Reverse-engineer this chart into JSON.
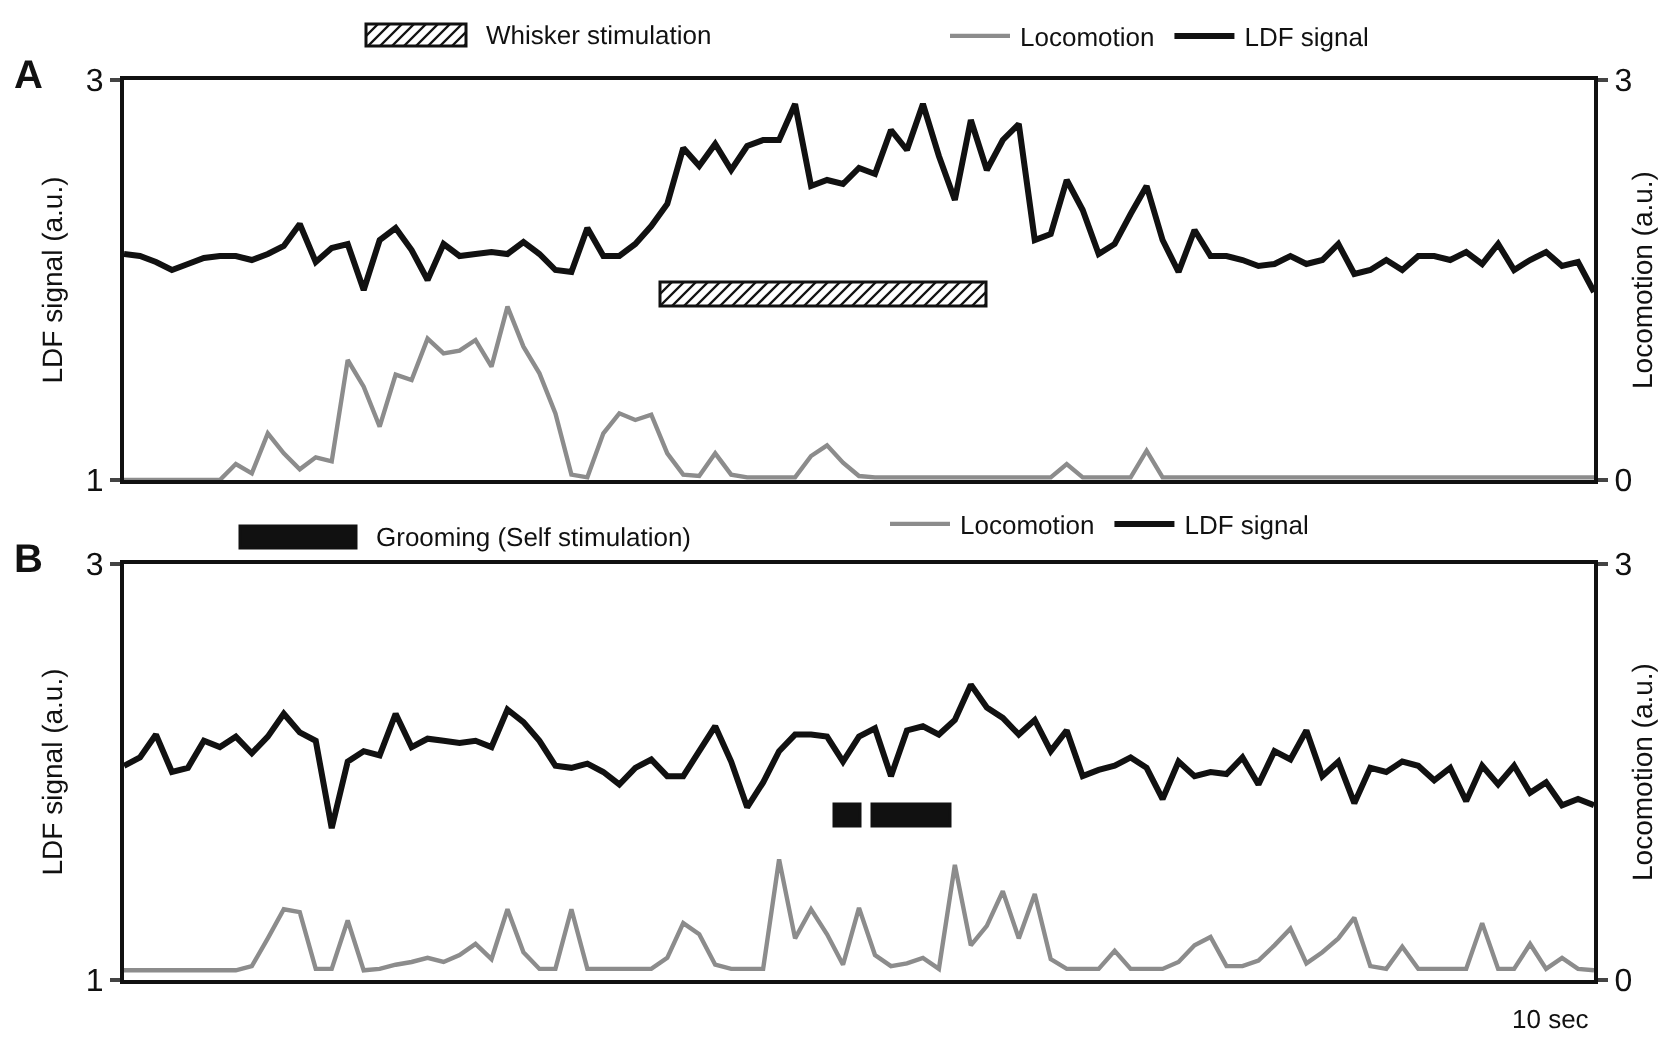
{
  "chart_data": [
    {
      "type": "line",
      "title": "A",
      "ylabel": "LDF signal (a.u.)",
      "y2label": "Locomotion (a.u.)",
      "ylim": [
        1,
        3
      ],
      "yticks": [
        1,
        3
      ],
      "y2lim": [
        0,
        3
      ],
      "y2ticks": [
        0,
        3
      ],
      "tick_labels": "y",
      "legend": "top",
      "line_style": "solid",
      "categories": [
        null,
        null,
        null,
        null,
        null,
        null,
        null,
        null,
        null,
        null,
        null,
        null,
        null,
        null,
        null,
        null,
        null,
        null,
        null,
        null,
        null,
        null,
        null,
        null,
        null,
        null,
        null,
        null,
        null,
        null,
        null,
        null,
        null,
        null,
        null,
        null,
        null,
        null,
        null,
        null,
        null,
        null,
        null,
        null,
        null,
        null,
        null,
        null,
        null,
        null,
        null,
        null,
        null,
        null,
        null,
        null,
        null,
        null,
        null,
        null,
        null,
        null,
        null,
        null,
        null,
        null,
        null,
        null,
        null,
        null,
        null,
        null,
        null,
        null,
        null,
        null,
        null,
        null,
        null,
        null,
        null,
        null,
        null,
        null,
        null,
        null,
        null,
        null,
        null,
        null,
        null,
        null,
        null
      ],
      "annotations": [
        "Whisker stimulation"
      ],
      "series": [
        {
          "name": "Locomotion",
          "color": "#8c8c8c",
          "axis": "y2",
          "values": [
            0,
            0,
            0,
            0,
            0,
            0,
            0,
            0.12,
            0.05,
            0.35,
            0.2,
            0.08,
            0.17,
            0.14,
            0.9,
            0.7,
            0.4,
            0.79,
            0.75,
            1.06,
            0.95,
            0.97,
            1.05,
            0.85,
            1.3,
            1.0,
            0.8,
            0.5,
            0.04,
            0.02,
            0.35,
            0.5,
            0.45,
            0.49,
            0.2,
            0.04,
            0.03,
            0.2,
            0.04,
            0.02,
            0.02,
            0.02,
            0.02,
            0.18,
            0.26,
            0.13,
            0.03,
            0.02,
            0.02,
            0.02,
            0.02,
            0.02,
            0.02,
            0.02,
            0.02,
            0.02,
            0.02,
            0.02,
            0.02,
            0.12,
            0.02,
            0.02,
            0.02,
            0.02,
            0.22,
            0.02,
            0.02,
            0.02,
            0.02,
            0.02,
            0.02,
            0.02,
            0.02,
            0.02,
            0.02,
            0.02,
            0.02,
            0.02,
            0.02,
            0.02,
            0.02,
            0.02,
            0.02,
            0.02,
            0.02,
            0.02,
            0.02,
            0.02,
            0.02,
            0.02,
            0.02,
            0.02,
            0.02
          ]
        },
        {
          "name": "LDF signal",
          "color": "#111111",
          "values": [
            2.13,
            2.12,
            2.09,
            2.05,
            2.08,
            2.11,
            2.12,
            2.12,
            2.1,
            2.13,
            2.17,
            2.28,
            2.09,
            2.16,
            2.18,
            1.95,
            2.2,
            2.26,
            2.15,
            2.0,
            2.18,
            2.12,
            2.13,
            2.14,
            2.13,
            2.19,
            2.13,
            2.05,
            2.04,
            2.26,
            2.12,
            2.12,
            2.18,
            2.27,
            2.38,
            2.66,
            2.57,
            2.68,
            2.55,
            2.67,
            2.7,
            2.7,
            2.88,
            2.47,
            2.5,
            2.48,
            2.56,
            2.53,
            2.75,
            2.65,
            2.88,
            2.62,
            2.4,
            2.8,
            2.55,
            2.7,
            2.78,
            2.2,
            2.23,
            2.5,
            2.35,
            2.13,
            2.18,
            2.33,
            2.47,
            2.2,
            2.04,
            2.25,
            2.12,
            2.12,
            2.1,
            2.07,
            2.08,
            2.12,
            2.08,
            2.1,
            2.18,
            2.03,
            2.05,
            2.1,
            2.05,
            2.12,
            2.12,
            2.1,
            2.14,
            2.08,
            2.18,
            2.05,
            2.1,
            2.14,
            2.07,
            2.09,
            1.94
          ]
        }
      ]
    },
    {
      "type": "line",
      "title": "B",
      "ylabel": "LDF signal (a.u.)",
      "y2label": "Locomotion (a.u.)",
      "ylim": [
        1,
        3
      ],
      "yticks": [
        1,
        3
      ],
      "y2lim": [
        0,
        3
      ],
      "y2ticks": [
        0,
        3
      ],
      "tick_labels": "y",
      "legend": "top",
      "line_style": "solid",
      "categories": [
        null,
        null,
        null,
        null,
        null,
        null,
        null,
        null,
        null,
        null,
        null,
        null,
        null,
        null,
        null,
        null,
        null,
        null,
        null,
        null,
        null,
        null,
        null,
        null,
        null,
        null,
        null,
        null,
        null,
        null,
        null,
        null,
        null,
        null,
        null,
        null,
        null,
        null,
        null,
        null,
        null,
        null,
        null,
        null,
        null,
        null,
        null,
        null,
        null,
        null,
        null,
        null,
        null,
        null,
        null,
        null,
        null,
        null,
        null,
        null,
        null,
        null,
        null,
        null,
        null,
        null,
        null,
        null,
        null,
        null,
        null,
        null,
        null,
        null,
        null,
        null,
        null,
        null,
        null,
        null,
        null,
        null,
        null,
        null,
        null,
        null,
        null,
        null,
        null,
        null,
        null,
        null,
        null
      ],
      "annotations": [
        "Grooming (Self stimulation)",
        "10 sec"
      ],
      "series": [
        {
          "name": "Locomotion",
          "color": "#8c8c8c",
          "axis": "y2",
          "values": [
            0.07,
            0.07,
            0.07,
            0.07,
            0.07,
            0.07,
            0.07,
            0.07,
            0.1,
            0.3,
            0.51,
            0.49,
            0.08,
            0.08,
            0.43,
            0.07,
            0.08,
            0.11,
            0.13,
            0.16,
            0.13,
            0.18,
            0.26,
            0.15,
            0.51,
            0.2,
            0.08,
            0.08,
            0.51,
            0.08,
            0.08,
            0.08,
            0.08,
            0.08,
            0.16,
            0.41,
            0.33,
            0.11,
            0.08,
            0.08,
            0.08,
            0.87,
            0.3,
            0.51,
            0.33,
            0.11,
            0.52,
            0.18,
            0.1,
            0.12,
            0.16,
            0.08,
            0.83,
            0.25,
            0.39,
            0.64,
            0.3,
            0.62,
            0.15,
            0.08,
            0.08,
            0.08,
            0.21,
            0.08,
            0.08,
            0.08,
            0.13,
            0.25,
            0.31,
            0.1,
            0.1,
            0.14,
            0.25,
            0.37,
            0.12,
            0.2,
            0.3,
            0.45,
            0.1,
            0.08,
            0.24,
            0.08,
            0.08,
            0.08,
            0.08,
            0.41,
            0.08,
            0.08,
            0.26,
            0.08,
            0.16,
            0.08,
            0.07
          ]
        },
        {
          "name": "LDF signal",
          "color": "#111111",
          "values": [
            2.03,
            2.07,
            2.18,
            2.0,
            2.02,
            2.15,
            2.12,
            2.17,
            2.09,
            2.17,
            2.28,
            2.19,
            2.15,
            1.73,
            2.05,
            2.1,
            2.08,
            2.28,
            2.12,
            2.16,
            2.15,
            2.14,
            2.15,
            2.12,
            2.3,
            2.24,
            2.15,
            2.03,
            2.02,
            2.04,
            2.0,
            1.94,
            2.02,
            2.06,
            1.98,
            1.98,
            2.1,
            2.22,
            2.05,
            1.83,
            1.95,
            2.1,
            2.18,
            2.18,
            2.17,
            2.05,
            2.17,
            2.21,
            1.98,
            2.2,
            2.22,
            2.18,
            2.25,
            2.42,
            2.31,
            2.26,
            2.18,
            2.25,
            2.1,
            2.2,
            1.98,
            2.01,
            2.03,
            2.07,
            2.02,
            1.87,
            2.05,
            1.98,
            2.0,
            1.99,
            2.07,
            1.94,
            2.1,
            2.06,
            2.2,
            1.98,
            2.05,
            1.85,
            2.02,
            2.0,
            2.05,
            2.03,
            1.96,
            2.02,
            1.86,
            2.03,
            1.94,
            2.03,
            1.9,
            1.95,
            1.84,
            1.87,
            1.84
          ]
        }
      ]
    }
  ]
}
